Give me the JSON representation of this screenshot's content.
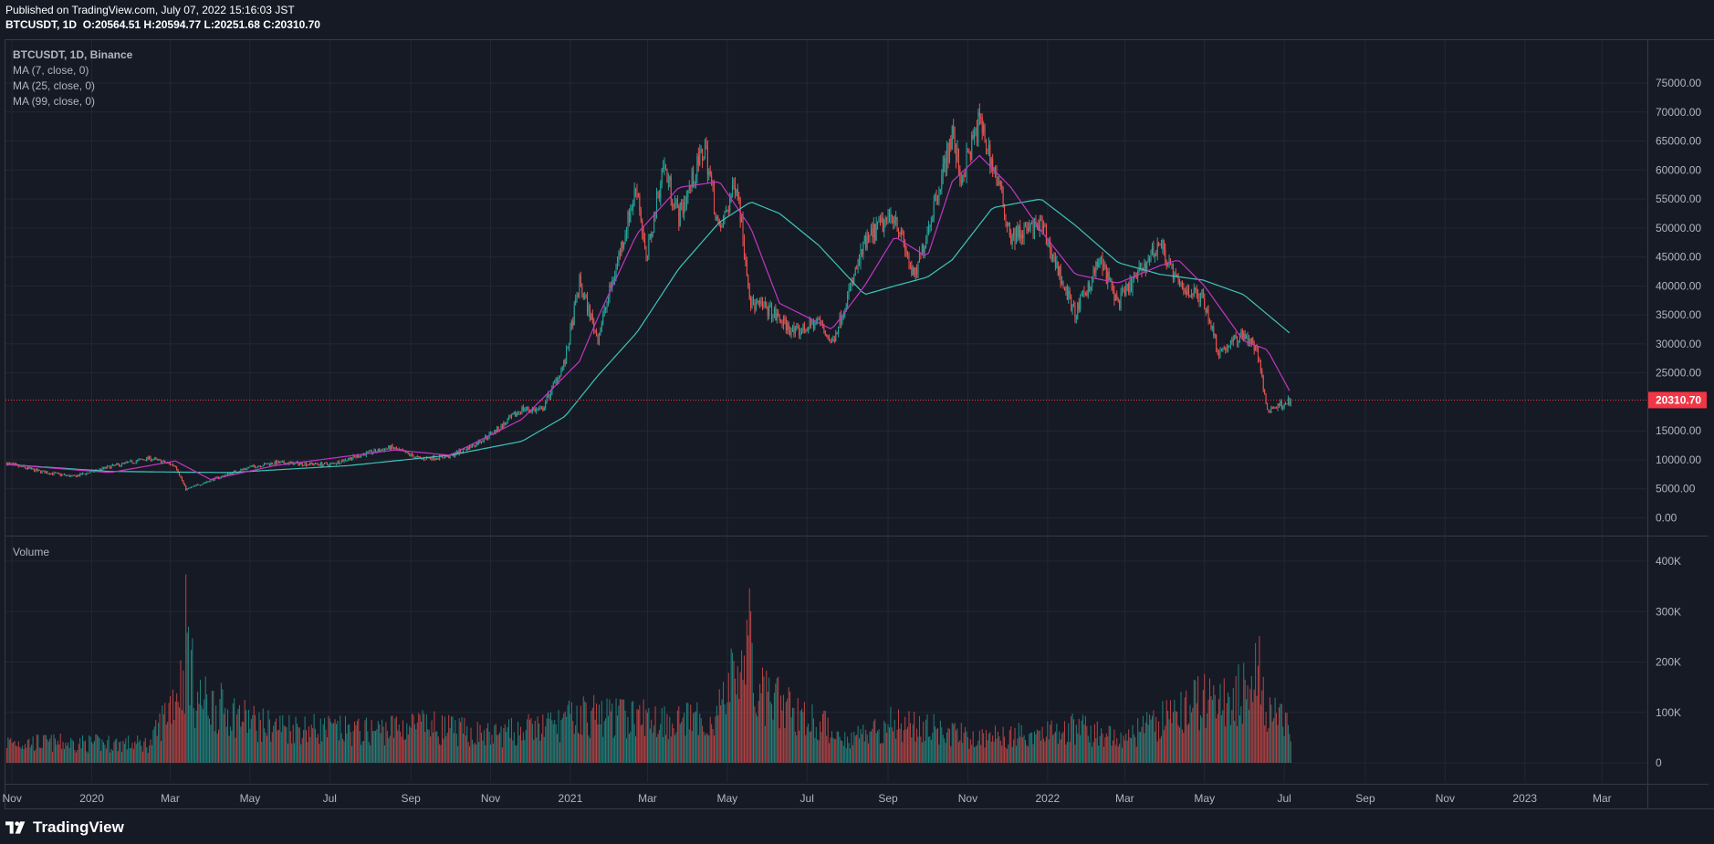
{
  "header": {
    "published": "Published on TradingView.com, July 07, 2022 15:16:03 JST",
    "symbol_line": "BTCUSDT, 1D",
    "o": "O:20564.51",
    "h": "H:20594.77",
    "l": "L:20251.68",
    "c": "C:20310.70"
  },
  "legend": {
    "title": "BTCUSDT, 1D, Binance",
    "ma7": "MA (7, close, 0)",
    "ma25": "MA (25, close, 0)",
    "ma99": "MA (99, close, 0)",
    "volume": "Volume"
  },
  "footer": {
    "brand": "TradingView"
  },
  "colors": {
    "background": "#161a25",
    "up": "#26a69a",
    "down": "#ef5350",
    "ma7": "#e6a700",
    "ma25": "#c236c2",
    "ma99": "#3dc6b9",
    "last_price": "#f23645",
    "grid": "#232734"
  },
  "chart_data": [
    {
      "type": "candlestick",
      "title": "BTCUSDT, 1D, Binance",
      "x_ticks": [
        "Nov",
        "2020",
        "Mar",
        "May",
        "Jul",
        "Sep",
        "Nov",
        "2021",
        "Mar",
        "May",
        "Jul",
        "Sep",
        "Nov",
        "2022",
        "Mar",
        "May",
        "Jul",
        "Sep",
        "Nov",
        "2023",
        "Mar"
      ],
      "y_ticks": [
        "75000.00",
        "70000.00",
        "65000.00",
        "60000.00",
        "55000.00",
        "50000.00",
        "45000.00",
        "40000.00",
        "35000.00",
        "30000.00",
        "25000.00",
        "15000.00",
        "10000.00",
        "5000.00",
        "0.00"
      ],
      "ylim": [
        0,
        75000
      ],
      "x_range": [
        "2019-10-27",
        "2023-04-04"
      ],
      "last_price": 20310.7,
      "last_price_label": "20310.70",
      "price_path": [
        [
          "2019-10-28",
          9400
        ],
        [
          "2019-11-20",
          8100
        ],
        [
          "2019-12-18",
          7100
        ],
        [
          "2020-01-15",
          8800
        ],
        [
          "2020-02-14",
          10300
        ],
        [
          "2020-03-05",
          9000
        ],
        [
          "2020-03-13",
          4900
        ],
        [
          "2020-04-01",
          6500
        ],
        [
          "2020-04-30",
          8700
        ],
        [
          "2020-05-20",
          9500
        ],
        [
          "2020-07-01",
          9200
        ],
        [
          "2020-07-27",
          11000
        ],
        [
          "2020-08-17",
          12100
        ],
        [
          "2020-09-08",
          10200
        ],
        [
          "2020-10-01",
          10600
        ],
        [
          "2020-10-21",
          12800
        ],
        [
          "2020-11-08",
          15500
        ],
        [
          "2020-11-25",
          18800
        ],
        [
          "2020-12-10",
          18500
        ],
        [
          "2020-12-28",
          27000
        ],
        [
          "2021-01-08",
          40500
        ],
        [
          "2021-01-22",
          31000
        ],
        [
          "2021-02-08",
          46000
        ],
        [
          "2021-02-21",
          57500
        ],
        [
          "2021-02-28",
          44000
        ],
        [
          "2021-03-13",
          61000
        ],
        [
          "2021-03-25",
          52000
        ],
        [
          "2021-04-14",
          64000
        ],
        [
          "2021-04-25",
          49000
        ],
        [
          "2021-05-08",
          58500
        ],
        [
          "2021-05-19",
          37000
        ],
        [
          "2021-06-01",
          36000
        ],
        [
          "2021-06-22",
          31800
        ],
        [
          "2021-07-10",
          34000
        ],
        [
          "2021-07-20",
          30000
        ],
        [
          "2021-08-14",
          47000
        ],
        [
          "2021-08-22",
          49500
        ],
        [
          "2021-09-06",
          52500
        ],
        [
          "2021-09-21",
          41000
        ],
        [
          "2021-10-20",
          66000
        ],
        [
          "2021-10-27",
          58500
        ],
        [
          "2021-11-10",
          68500
        ],
        [
          "2021-11-25",
          57000
        ],
        [
          "2021-12-04",
          48500
        ],
        [
          "2021-12-27",
          50500
        ],
        [
          "2022-01-22",
          35000
        ],
        [
          "2022-02-10",
          44500
        ],
        [
          "2022-02-24",
          37000
        ],
        [
          "2022-03-28",
          47500
        ],
        [
          "2022-04-11",
          40000
        ],
        [
          "2022-04-30",
          38000
        ],
        [
          "2022-05-12",
          28500
        ],
        [
          "2022-05-31",
          31800
        ],
        [
          "2022-06-10",
          29000
        ],
        [
          "2022-06-18",
          18500
        ],
        [
          "2022-07-06",
          20310
        ]
      ],
      "ma25_path": [
        [
          "2019-10-28",
          9200
        ],
        [
          "2020-01-15",
          7800
        ],
        [
          "2020-03-05",
          9800
        ],
        [
          "2020-04-01",
          6600
        ],
        [
          "2020-05-20",
          9000
        ],
        [
          "2020-08-20",
          11700
        ],
        [
          "2020-10-01",
          10800
        ],
        [
          "2020-11-25",
          17000
        ],
        [
          "2021-01-08",
          27000
        ],
        [
          "2021-01-22",
          34500
        ],
        [
          "2021-02-21",
          49000
        ],
        [
          "2021-03-25",
          57000
        ],
        [
          "2021-04-25",
          58000
        ],
        [
          "2021-05-19",
          50000
        ],
        [
          "2021-06-10",
          37000
        ],
        [
          "2021-07-20",
          32500
        ],
        [
          "2021-08-14",
          40000
        ],
        [
          "2021-09-06",
          48500
        ],
        [
          "2021-10-01",
          45000
        ],
        [
          "2021-10-20",
          58000
        ],
        [
          "2021-11-10",
          62500
        ],
        [
          "2021-12-04",
          57000
        ],
        [
          "2021-12-27",
          49500
        ],
        [
          "2022-01-22",
          42000
        ],
        [
          "2022-02-24",
          40500
        ],
        [
          "2022-03-28",
          43500
        ],
        [
          "2022-04-11",
          44500
        ],
        [
          "2022-05-01",
          40000
        ],
        [
          "2022-05-31",
          30500
        ],
        [
          "2022-06-18",
          29000
        ],
        [
          "2022-07-06",
          21500
        ]
      ],
      "ma99_path": [
        [
          "2019-10-28",
          9200
        ],
        [
          "2020-01-15",
          8000
        ],
        [
          "2020-04-15",
          7800
        ],
        [
          "2020-07-15",
          9000
        ],
        [
          "2020-10-01",
          10800
        ],
        [
          "2020-11-25",
          13200
        ],
        [
          "2020-12-28",
          17500
        ],
        [
          "2021-01-22",
          24500
        ],
        [
          "2021-02-21",
          32000
        ],
        [
          "2021-03-25",
          43000
        ],
        [
          "2021-04-25",
          51000
        ],
        [
          "2021-05-19",
          54500
        ],
        [
          "2021-06-10",
          52500
        ],
        [
          "2021-07-10",
          47000
        ],
        [
          "2021-08-14",
          38500
        ],
        [
          "2021-09-06",
          40000
        ],
        [
          "2021-10-01",
          41500
        ],
        [
          "2021-10-20",
          44500
        ],
        [
          "2021-11-20",
          53500
        ],
        [
          "2021-12-27",
          55000
        ],
        [
          "2022-01-22",
          50500
        ],
        [
          "2022-02-24",
          44000
        ],
        [
          "2022-03-28",
          42000
        ],
        [
          "2022-04-30",
          41000
        ],
        [
          "2022-05-31",
          38500
        ],
        [
          "2022-07-06",
          31700
        ]
      ]
    },
    {
      "type": "bar",
      "title": "Volume",
      "y_ticks": [
        "400K",
        "300K",
        "200K",
        "100K",
        "0"
      ],
      "ylim": [
        0,
        400000
      ],
      "volume_envelope": [
        [
          "2019-10-28",
          60000
        ],
        [
          "2020-02-15",
          55000
        ],
        [
          "2020-03-12",
          260000
        ],
        [
          "2020-03-13",
          400000
        ],
        [
          "2020-03-20",
          190000
        ],
        [
          "2020-05-10",
          110000
        ],
        [
          "2020-07-27",
          90000
        ],
        [
          "2020-09-05",
          110000
        ],
        [
          "2020-11-01",
          80000
        ],
        [
          "2020-12-20",
          110000
        ],
        [
          "2021-01-11",
          140000
        ],
        [
          "2021-02-25",
          130000
        ],
        [
          "2021-04-20",
          120000
        ],
        [
          "2021-05-19",
          355000
        ],
        [
          "2021-05-23",
          200000
        ],
        [
          "2021-06-22",
          150000
        ],
        [
          "2021-08-01",
          70000
        ],
        [
          "2021-09-07",
          120000
        ],
        [
          "2021-11-10",
          70000
        ],
        [
          "2022-01-22",
          100000
        ],
        [
          "2022-03-01",
          70000
        ],
        [
          "2022-05-10",
          200000
        ],
        [
          "2022-05-12",
          160000
        ],
        [
          "2022-06-13",
          255000
        ],
        [
          "2022-06-18",
          170000
        ],
        [
          "2022-07-06",
          85000
        ]
      ]
    }
  ]
}
